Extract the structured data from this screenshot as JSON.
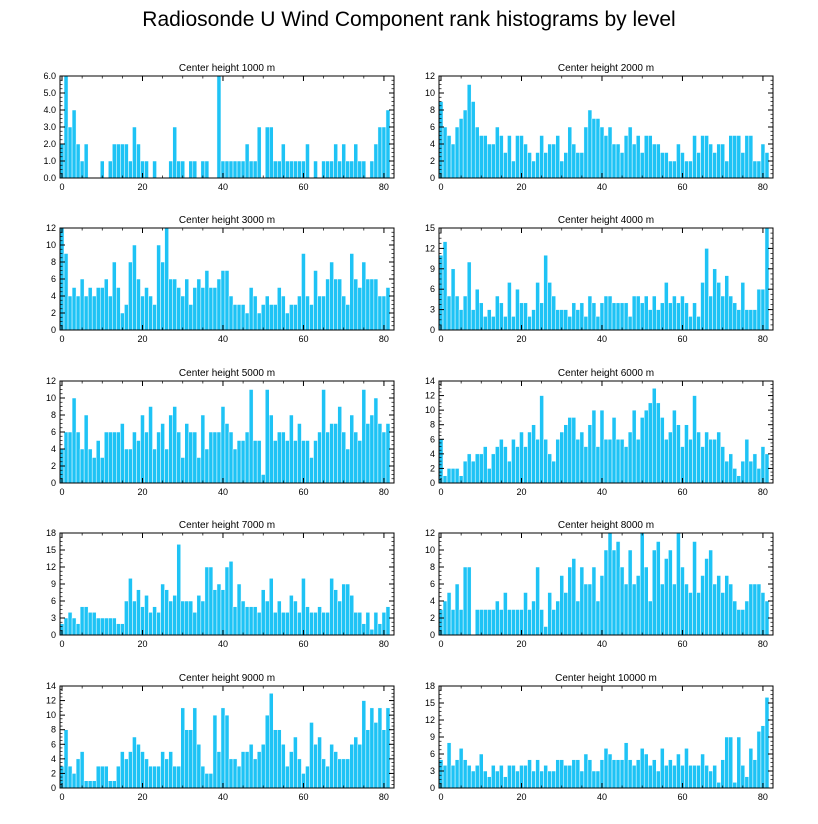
{
  "title": "Radiosonde U Wind Component rank histograms by level",
  "colors": {
    "bar": "#1ec3f5",
    "bar_stroke": "#ffffff",
    "axis": "#000000"
  },
  "chart_data": [
    {
      "type": "bar",
      "title": "Center height 1000 m",
      "ylim": [
        0,
        6
      ],
      "yticks": [
        0,
        1,
        2,
        3,
        4,
        5,
        6
      ],
      "ytick_labels": [
        "0.0",
        "1.0",
        "2.0",
        "3.0",
        "4.0",
        "5.0",
        "6.0"
      ],
      "xticks": [
        0,
        20,
        40,
        60,
        80
      ],
      "values": [
        2,
        6,
        3,
        4,
        2,
        1,
        2,
        0,
        0,
        0,
        1,
        0,
        1,
        2,
        2,
        2,
        2,
        1,
        3,
        2,
        1,
        1,
        0,
        1,
        0,
        0,
        0,
        1,
        3,
        1,
        1,
        0,
        1,
        1,
        0,
        1,
        1,
        0,
        0,
        6,
        1,
        1,
        1,
        1,
        1,
        1,
        2,
        1,
        1,
        3,
        0,
        3,
        3,
        1,
        1,
        2,
        1,
        1,
        1,
        1,
        1,
        2,
        0,
        1,
        0,
        1,
        1,
        1,
        2,
        1,
        2,
        1,
        1,
        2,
        1,
        1,
        0,
        1,
        2,
        3,
        3,
        4
      ]
    },
    {
      "type": "bar",
      "title": "Center height 2000 m",
      "ylim": [
        0,
        12
      ],
      "yticks": [
        0,
        2,
        4,
        6,
        8,
        10,
        12
      ],
      "ytick_labels": [
        "0",
        "2",
        "4",
        "6",
        "8",
        "10",
        "12"
      ],
      "xticks": [
        0,
        20,
        40,
        60,
        80
      ],
      "values": [
        9,
        6,
        5,
        4,
        6,
        7,
        8,
        11,
        9,
        6,
        5,
        5,
        4,
        4,
        6,
        5,
        3,
        5,
        2,
        5,
        5,
        4,
        3,
        2,
        3,
        5,
        3,
        4,
        4,
        5,
        2,
        3,
        6,
        4,
        3,
        3,
        6,
        8,
        7,
        7,
        6,
        5,
        6,
        4,
        4,
        3,
        5,
        6,
        4,
        5,
        3,
        5,
        5,
        4,
        4,
        3,
        3,
        2,
        2,
        4,
        3,
        2,
        2,
        5,
        3,
        5,
        5,
        4,
        3,
        4,
        4,
        2,
        5,
        5,
        5,
        3,
        5,
        5,
        2,
        2,
        4,
        3
      ]
    },
    {
      "type": "bar",
      "title": "Center height 3000 m",
      "ylim": [
        0,
        12
      ],
      "yticks": [
        0,
        2,
        4,
        6,
        8,
        10,
        12
      ],
      "ytick_labels": [
        "0",
        "2",
        "4",
        "6",
        "8",
        "10",
        "12"
      ],
      "xticks": [
        0,
        20,
        40,
        60,
        80
      ],
      "values": [
        12,
        9,
        4,
        5,
        4,
        6,
        4,
        5,
        4,
        5,
        5,
        6,
        4,
        8,
        5,
        2,
        3,
        8,
        10,
        6,
        4,
        5,
        4,
        3,
        10,
        8,
        12,
        6,
        6,
        5,
        4,
        6,
        3,
        5,
        6,
        5,
        7,
        5,
        5,
        6,
        7,
        7,
        4,
        3,
        3,
        3,
        2,
        5,
        4,
        2,
        3,
        4,
        3,
        3,
        5,
        4,
        2,
        3,
        3,
        4,
        9,
        4,
        3,
        7,
        4,
        4,
        6,
        8,
        6,
        6,
        4,
        3,
        9,
        6,
        5,
        8,
        6,
        6,
        6,
        4,
        4,
        5
      ]
    },
    {
      "type": "bar",
      "title": "Center height 4000 m",
      "ylim": [
        0,
        15
      ],
      "yticks": [
        0,
        3,
        6,
        9,
        12,
        15
      ],
      "ytick_labels": [
        "0",
        "3",
        "6",
        "9",
        "12",
        "15"
      ],
      "xticks": [
        0,
        20,
        40,
        60,
        80
      ],
      "values": [
        11,
        13,
        5,
        9,
        5,
        3,
        5,
        10,
        3,
        6,
        4,
        2,
        3,
        2,
        5,
        4,
        2,
        7,
        2,
        6,
        4,
        4,
        2,
        3,
        7,
        4,
        11,
        7,
        5,
        3,
        3,
        3,
        2,
        4,
        3,
        4,
        2,
        5,
        4,
        2,
        4,
        5,
        5,
        4,
        4,
        4,
        4,
        2,
        5,
        5,
        4,
        5,
        3,
        5,
        3,
        4,
        7,
        4,
        5,
        4,
        5,
        4,
        2,
        4,
        2,
        7,
        12,
        5,
        9,
        7,
        5,
        8,
        5,
        4,
        3,
        7,
        3,
        3,
        3,
        6,
        6,
        15
      ]
    },
    {
      "type": "bar",
      "title": "Center height 5000 m",
      "ylim": [
        0,
        12
      ],
      "yticks": [
        0,
        2,
        4,
        6,
        8,
        10,
        12
      ],
      "ytick_labels": [
        "0",
        "2",
        "4",
        "6",
        "8",
        "10",
        "12"
      ],
      "xticks": [
        0,
        20,
        40,
        60,
        80
      ],
      "values": [
        4,
        6,
        6,
        10,
        6,
        4,
        8,
        4,
        3,
        5,
        3,
        6,
        6,
        6,
        6,
        7,
        4,
        4,
        6,
        5,
        8,
        6,
        9,
        4,
        6,
        7,
        4,
        8,
        9,
        6,
        3,
        7,
        6,
        6,
        3,
        8,
        4,
        6,
        6,
        6,
        9,
        7,
        6,
        4,
        5,
        5,
        6,
        11,
        5,
        5,
        1,
        11,
        8,
        5,
        6,
        6,
        5,
        8,
        5,
        7,
        5,
        5,
        3,
        5,
        6,
        11,
        6,
        7,
        7,
        9,
        6,
        4,
        8,
        6,
        5,
        11,
        7,
        8,
        10,
        7,
        6,
        7
      ]
    },
    {
      "type": "bar",
      "title": "Center height 6000 m",
      "ylim": [
        0,
        14
      ],
      "yticks": [
        0,
        2,
        4,
        6,
        8,
        10,
        12,
        14
      ],
      "ytick_labels": [
        "0",
        "2",
        "4",
        "6",
        "8",
        "10",
        "12",
        "14"
      ],
      "xticks": [
        0,
        20,
        40,
        60,
        80
      ],
      "values": [
        6,
        1,
        2,
        2,
        2,
        1,
        3,
        4,
        3,
        4,
        4,
        5,
        2,
        4,
        5,
        6,
        5,
        3,
        6,
        5,
        7,
        5,
        7,
        8,
        6,
        12,
        6,
        4,
        3,
        6,
        7,
        8,
        9,
        9,
        6,
        7,
        5,
        8,
        10,
        5,
        10,
        6,
        6,
        9,
        6,
        6,
        5,
        7,
        10,
        6,
        9,
        10,
        11,
        13,
        11,
        9,
        6,
        7,
        10,
        8,
        5,
        8,
        6,
        12,
        7,
        5,
        7,
        6,
        6,
        7,
        5,
        3,
        4,
        2,
        1,
        3,
        6,
        3,
        4,
        2,
        5,
        4
      ]
    },
    {
      "type": "bar",
      "title": "Center height 7000 m",
      "ylim": [
        0,
        18
      ],
      "yticks": [
        0,
        3,
        6,
        9,
        12,
        15,
        18
      ],
      "ytick_labels": [
        "0",
        "3",
        "6",
        "9",
        "12",
        "15",
        "18"
      ],
      "xticks": [
        0,
        20,
        40,
        60,
        80
      ],
      "values": [
        2,
        3,
        4,
        3,
        2,
        5,
        5,
        4,
        4,
        3,
        3,
        3,
        3,
        3,
        2,
        2,
        6,
        10,
        6,
        8,
        5,
        7,
        4,
        5,
        4,
        9,
        8,
        6,
        7,
        16,
        6,
        6,
        6,
        4,
        7,
        6,
        12,
        12,
        8,
        9,
        8,
        12,
        13,
        5,
        9,
        6,
        5,
        5,
        5,
        4,
        8,
        6,
        10,
        4,
        6,
        4,
        4,
        7,
        6,
        4,
        10,
        5,
        4,
        4,
        5,
        4,
        4,
        10,
        8,
        6,
        9,
        9,
        7,
        4,
        4,
        2,
        4,
        1,
        4,
        2,
        4,
        5
      ]
    },
    {
      "type": "bar",
      "title": "Center height 8000 m",
      "ylim": [
        0,
        12
      ],
      "yticks": [
        0,
        2,
        4,
        6,
        8,
        10,
        12
      ],
      "ytick_labels": [
        "0",
        "2",
        "4",
        "6",
        "8",
        "10",
        "12"
      ],
      "xticks": [
        0,
        20,
        40,
        60,
        80
      ],
      "values": [
        3,
        4,
        5,
        3,
        6,
        3,
        8,
        8,
        0,
        3,
        3,
        3,
        3,
        3,
        4,
        3,
        5,
        3,
        3,
        3,
        3,
        5,
        3,
        4,
        8,
        3,
        1,
        5,
        3,
        4,
        7,
        5,
        8,
        9,
        4,
        8,
        6,
        6,
        8,
        4,
        7,
        10,
        12,
        10,
        11,
        8,
        6,
        10,
        6,
        7,
        12,
        8,
        4,
        10,
        11,
        6,
        9,
        10,
        6,
        12,
        8,
        6,
        5,
        11,
        5,
        7,
        9,
        10,
        6,
        7,
        5,
        7,
        6,
        4,
        3,
        3,
        4,
        6,
        6,
        6,
        5,
        4
      ]
    },
    {
      "type": "bar",
      "title": "Center height 9000 m",
      "ylim": [
        0,
        14
      ],
      "yticks": [
        0,
        2,
        4,
        6,
        8,
        10,
        12,
        14
      ],
      "ytick_labels": [
        "0",
        "2",
        "4",
        "6",
        "8",
        "10",
        "12",
        "14"
      ],
      "xticks": [
        0,
        20,
        40,
        60,
        80
      ],
      "values": [
        3,
        8,
        3,
        2,
        4,
        5,
        1,
        1,
        1,
        3,
        3,
        3,
        1,
        1,
        3,
        5,
        4,
        5,
        7,
        6,
        5,
        4,
        3,
        3,
        3,
        5,
        4,
        5,
        3,
        3,
        11,
        8,
        8,
        11,
        6,
        3,
        2,
        2,
        10,
        5,
        11,
        10,
        4,
        4,
        3,
        5,
        5,
        6,
        4,
        5,
        6,
        10,
        13,
        8,
        8,
        6,
        3,
        5,
        7,
        4,
        2,
        3,
        9,
        6,
        7,
        4,
        3,
        6,
        5,
        4,
        4,
        4,
        6,
        7,
        6,
        12,
        8,
        11,
        9,
        11,
        8,
        11
      ]
    },
    {
      "type": "bar",
      "title": "Center height 10000 m",
      "ylim": [
        0,
        18
      ],
      "yticks": [
        0,
        3,
        6,
        9,
        12,
        15,
        18
      ],
      "ytick_labels": [
        "0",
        "3",
        "6",
        "9",
        "12",
        "15",
        "18"
      ],
      "xticks": [
        0,
        20,
        40,
        60,
        80
      ],
      "values": [
        5,
        4,
        8,
        4,
        5,
        7,
        5,
        4,
        3,
        4,
        6,
        3,
        2,
        4,
        3,
        4,
        2,
        4,
        4,
        3,
        4,
        4,
        5,
        3,
        5,
        3,
        4,
        3,
        3,
        5,
        5,
        4,
        4,
        5,
        5,
        3,
        6,
        5,
        3,
        3,
        5,
        7,
        6,
        5,
        5,
        5,
        8,
        5,
        4,
        5,
        7,
        6,
        4,
        5,
        3,
        7,
        4,
        5,
        4,
        6,
        4,
        7,
        4,
        4,
        4,
        6,
        4,
        3,
        4,
        1,
        5,
        9,
        9,
        1,
        9,
        4,
        2,
        7,
        5,
        10,
        11,
        16
      ]
    }
  ]
}
